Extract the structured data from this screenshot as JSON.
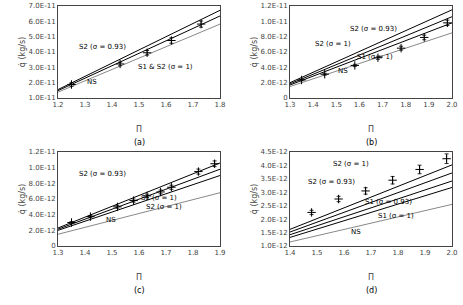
{
  "chart_data": [
    {
      "type": "line",
      "title": "(a)",
      "xlabel": "Π",
      "ylabel": "q̇ (kg/s)",
      "grid": false,
      "xlim": [
        1.2,
        1.8
      ],
      "ylim": [
        1e-11,
        7e-11
      ],
      "xticks": [
        1.2,
        1.3,
        1.4,
        1.5,
        1.6,
        1.7,
        1.8
      ],
      "yticks": [
        {
          "value": 1e-11,
          "label": "1.0E-11"
        },
        {
          "value": 2e-11,
          "label": "2.0E-11"
        },
        {
          "value": 3e-11,
          "label": "3.0E-11"
        },
        {
          "value": 4e-11,
          "label": "4.0E-11"
        },
        {
          "value": 5e-11,
          "label": "5.0E-11"
        },
        {
          "value": 6e-11,
          "label": "6.0E-11"
        },
        {
          "value": 7e-11,
          "label": "7.0E-11"
        }
      ],
      "series": [
        {
          "type": "line",
          "color": "#888888",
          "line_style": "solid",
          "x": [
            1.2,
            1.8
          ],
          "values": [
            1.38e-11,
            5.82e-11
          ]
        },
        {
          "type": "line",
          "color": "black",
          "line_style": "solid",
          "x": [
            1.2,
            1.8
          ],
          "values": [
            1.48e-11,
            6.35e-11
          ]
        },
        {
          "type": "line",
          "color": "black",
          "line_style": "solid",
          "x": [
            1.2,
            1.8
          ],
          "values": [
            1.55e-11,
            6.72e-11
          ]
        },
        {
          "type": "scatter",
          "marker": "+",
          "color": "black",
          "x": [
            1.25,
            1.43,
            1.53,
            1.62,
            1.73
          ],
          "values": [
            1.88e-11,
            3.22e-11,
            3.95e-11,
            4.75e-11,
            5.82e-11
          ],
          "yerr": [
            1.2e-12,
            1.2e-12,
            1.5e-12,
            1.8e-12,
            2e-12
          ]
        }
      ],
      "annotations": [
        {
          "text": "S2 (σ = 0.93)",
          "x": 1.27,
          "y": 4.35e-11
        },
        {
          "text": "S1 & S2 (σ = 1)",
          "x": 1.49,
          "y": 3e-11
        },
        {
          "text": "NS",
          "x": 1.3,
          "y": 2.05e-11
        }
      ]
    },
    {
      "type": "line",
      "title": "(b)",
      "xlabel": "Π",
      "ylabel": "q̇ (kg/s)",
      "grid": false,
      "xlim": [
        1.3,
        2.0
      ],
      "ylim": [
        0,
        1.2e-11
      ],
      "xticks": [
        1.3,
        1.4,
        1.5,
        1.6,
        1.7,
        1.8,
        1.9,
        {
          "value": 2.0,
          "label": "2.0"
        }
      ],
      "yticks": [
        0,
        {
          "value": 2e-12,
          "label": "2.0E-12"
        },
        {
          "value": 4e-12,
          "label": "4.0E-12"
        },
        {
          "value": 6e-12,
          "label": "6.0E-12"
        },
        {
          "value": 8e-12,
          "label": "8.0E-12"
        },
        {
          "value": 1e-11,
          "label": "1.0E-11"
        },
        {
          "value": 1.2e-11,
          "label": "1.2E-11"
        }
      ],
      "series": [
        {
          "type": "line",
          "color": "#888888",
          "line_style": "solid",
          "x": [
            1.3,
            2.0
          ],
          "values": [
            1.5e-12,
            8.5e-12
          ]
        },
        {
          "type": "line",
          "color": "black",
          "line_style": "solid",
          "x": [
            1.3,
            2.0
          ],
          "values": [
            1.7e-12,
            9.8e-12
          ]
        },
        {
          "type": "line",
          "color": "black",
          "line_style": "solid",
          "x": [
            1.3,
            2.0
          ],
          "values": [
            1.85e-12,
            1.06e-11
          ]
        },
        {
          "type": "line",
          "color": "black",
          "line_style": "solid",
          "x": [
            1.3,
            2.0
          ],
          "values": [
            2e-12,
            1.15e-11
          ]
        },
        {
          "type": "scatter",
          "marker": "+",
          "color": "black",
          "x": [
            1.35,
            1.45,
            1.58,
            1.68,
            1.78,
            1.88,
            1.98
          ],
          "values": [
            2.35e-12,
            3.1e-12,
            4.25e-12,
            5.25e-12,
            6.5e-12,
            7.9e-12,
            9.8e-12
          ],
          "yerr": [
            1e-13,
            1.2e-13,
            1.5e-13,
            2e-13,
            2.5e-13,
            3e-13,
            3.5e-13
          ]
        }
      ],
      "annotations": [
        {
          "text": "S2 (σ = 0.93)",
          "x": 1.55,
          "y": 9e-12
        },
        {
          "text": "S2 (σ = 1)",
          "x": 1.4,
          "y": 7e-12
        },
        {
          "text": "S1 (σ = 1)",
          "x": 1.58,
          "y": 5.4e-12
        },
        {
          "text": "NS",
          "x": 1.5,
          "y": 3.5e-12
        }
      ]
    },
    {
      "type": "line",
      "title": "(c)",
      "xlabel": "Π",
      "ylabel": "q̇ (kg/s)",
      "grid": false,
      "xlim": [
        1.3,
        1.9
      ],
      "ylim": [
        0,
        1.2e-11
      ],
      "xticks": [
        1.3,
        1.4,
        1.5,
        1.6,
        1.7,
        1.8,
        1.9
      ],
      "yticks": [
        0,
        {
          "value": 2e-12,
          "label": "2.0E-12"
        },
        {
          "value": 4e-12,
          "label": "4.0E-12"
        },
        {
          "value": 6e-12,
          "label": "6.0E-12"
        },
        {
          "value": 8e-12,
          "label": "8.0E-12"
        },
        {
          "value": 1e-11,
          "label": "1.0E-11"
        },
        {
          "value": 1.2e-11,
          "label": "1.2E-11"
        }
      ],
      "series": [
        {
          "type": "line",
          "color": "#888888",
          "line_style": "solid",
          "x": [
            1.3,
            1.9
          ],
          "values": [
            1.5e-12,
            6.8e-12
          ]
        },
        {
          "type": "line",
          "color": "black",
          "line_style": "solid",
          "x": [
            1.3,
            1.9
          ],
          "values": [
            2e-12,
            9e-12
          ]
        },
        {
          "type": "line",
          "color": "black",
          "line_style": "solid",
          "x": [
            1.3,
            1.9
          ],
          "values": [
            2.15e-12,
            9.8e-12
          ]
        },
        {
          "type": "line",
          "color": "black",
          "line_style": "solid",
          "x": [
            1.3,
            1.9
          ],
          "values": [
            2.3e-12,
            1.06e-11
          ]
        },
        {
          "type": "scatter",
          "marker": "+",
          "color": "black",
          "x": [
            1.35,
            1.42,
            1.52,
            1.58,
            1.63,
            1.68,
            1.72,
            1.82,
            1.88
          ],
          "values": [
            3e-12,
            3.75e-12,
            5e-12,
            5.8e-12,
            6.4e-12,
            6.9e-12,
            7.5e-12,
            9.5e-12,
            1.05e-11
          ],
          "yerr": [
            1.2e-13,
            1.4e-13,
            1.8e-13,
            2e-13,
            2.2e-13,
            2.4e-13,
            2.6e-13,
            3.2e-13,
            3.6e-13
          ]
        }
      ],
      "annotations": [
        {
          "text": "S2 (σ = 0.93)",
          "x": 1.37,
          "y": 9.2e-12
        },
        {
          "text": "S1 (σ = 1)",
          "x": 1.6,
          "y": 6.1e-12
        },
        {
          "text": "S2 (σ = 1)",
          "x": 1.62,
          "y": 5e-12
        },
        {
          "text": "NS",
          "x": 1.47,
          "y": 3.3e-12
        }
      ]
    },
    {
      "type": "line",
      "title": "(d)",
      "xlabel": "Π",
      "ylabel": "q̇ (kg/s)",
      "grid": false,
      "xlim": [
        1.4,
        2.0
      ],
      "ylim": [
        1e-12,
        4.5e-12
      ],
      "xticks": [
        1.4,
        1.5,
        1.6,
        1.7,
        1.8,
        1.9,
        {
          "value": 2.0,
          "label": "2.0"
        }
      ],
      "yticks": [
        {
          "value": 1e-12,
          "label": "1.0E-12"
        },
        {
          "value": 1.5e-12,
          "label": "1.5E-12"
        },
        {
          "value": 2e-12,
          "label": "2.0E-12"
        },
        {
          "value": 2.5e-12,
          "label": "2.5E-12"
        },
        {
          "value": 3e-12,
          "label": "3.0E-12"
        },
        {
          "value": 3.5e-12,
          "label": "3.5E-12"
        },
        {
          "value": 4e-12,
          "label": "4.0E-12"
        },
        {
          "value": 4.5e-12,
          "label": "4.5E-12"
        }
      ],
      "series": [
        {
          "type": "line",
          "color": "#888888",
          "line_style": "solid",
          "x": [
            1.4,
            2.0
          ],
          "values": [
            1.15e-12,
            2.55e-12
          ]
        },
        {
          "type": "line",
          "color": "black",
          "line_style": "solid",
          "x": [
            1.4,
            2.0
          ],
          "values": [
            1.32e-12,
            3.18e-12
          ]
        },
        {
          "type": "line",
          "color": "black",
          "line_style": "solid",
          "x": [
            1.4,
            2.0
          ],
          "values": [
            1.42e-12,
            3.42e-12
          ]
        },
        {
          "type": "line",
          "color": "black",
          "line_style": "solid",
          "x": [
            1.4,
            2.0
          ],
          "values": [
            1.52e-12,
            3.72e-12
          ]
        },
        {
          "type": "line",
          "color": "black",
          "line_style": "solid",
          "x": [
            1.4,
            2.0
          ],
          "values": [
            1.62e-12,
            4.02e-12
          ]
        },
        {
          "type": "scatter",
          "marker": "+",
          "color": "black",
          "x": [
            1.48,
            1.58,
            1.68,
            1.78,
            1.88,
            1.98
          ],
          "values": [
            2.25e-12,
            2.75e-12,
            3.05e-12,
            3.45e-12,
            3.85e-12,
            4.25e-12
          ],
          "yerr": [
            8e-14,
            1e-13,
            1.2e-13,
            1.4e-13,
            1.6e-13,
            1.8e-13
          ]
        }
      ],
      "annotations": [
        {
          "text": "S2 (σ = 1)",
          "x": 1.55,
          "y": 4.05e-12
        },
        {
          "text": "S2 (σ = 0.93)",
          "x": 1.46,
          "y": 3.4e-12
        },
        {
          "text": "S1 (σ = 0.93)",
          "x": 1.67,
          "y": 2.62e-12
        },
        {
          "text": "S1 (σ = 1)",
          "x": 1.72,
          "y": 2.1e-12
        },
        {
          "text": "NS",
          "x": 1.62,
          "y": 1.52e-12
        }
      ]
    }
  ]
}
